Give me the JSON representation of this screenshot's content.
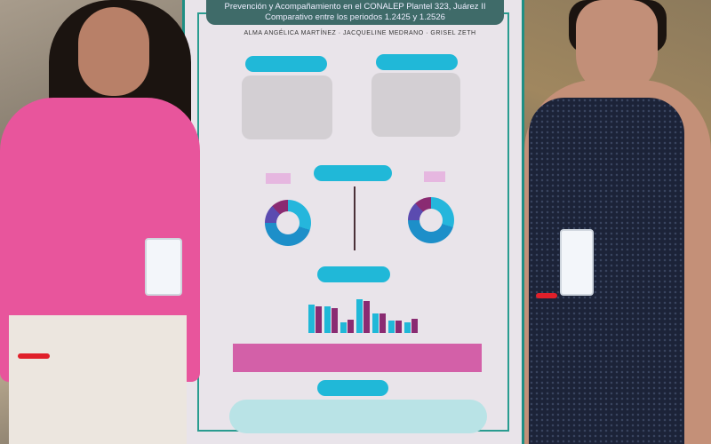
{
  "poster": {
    "title_line1": "Prevención y Acompañamiento en el CONALEP Plantel 323, Juárez II",
    "title_line2": "Comparativo entre los periodos 1.2425 y 1.2526",
    "authors": "ALMA ANGÉLICA MARTÍNEZ · JACQUELINE MEDRANO · GRISEL ZETH",
    "colors": {
      "frame": "#1f8f84",
      "pill": "#20b8d8",
      "band": "#d360a8",
      "title_bg": "#3f6b69"
    }
  },
  "people": {
    "left_shirt_color": "#e8559c",
    "right_dress_color": "#1c2338"
  }
}
